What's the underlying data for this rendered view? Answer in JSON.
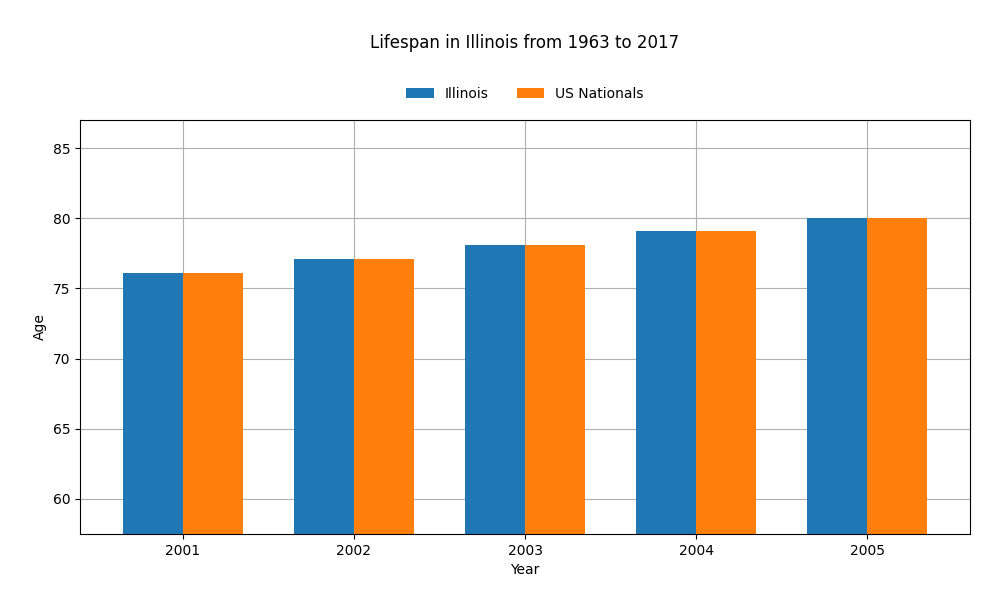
{
  "chart_data": {
    "type": "bar",
    "title": "Lifespan in Illinois from 1963 to 2017",
    "x_label": "Year",
    "y_label": "Age",
    "categories": [
      "2001",
      "2002",
      "2003",
      "2004",
      "2005"
    ],
    "series": [
      {
        "name": "Illinois",
        "values": [
          76.1,
          77.1,
          78.1,
          79.1,
          80.0
        ]
      },
      {
        "name": "US Nationals",
        "values": [
          76.1,
          77.1,
          78.1,
          79.1,
          80.0
        ]
      }
    ],
    "ylim": [
      57.5,
      87
    ],
    "yticks": [
      60,
      65,
      70,
      75,
      80,
      85
    ],
    "grid": true,
    "legend": "upper center"
  }
}
